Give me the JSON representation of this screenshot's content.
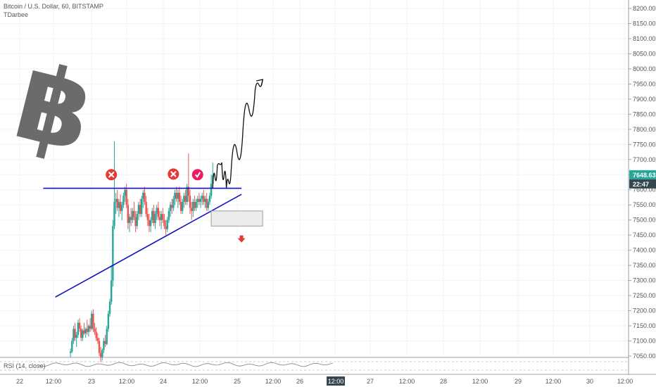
{
  "legend": {
    "symbol_line": "Bitcoin / U.S. Dollar, 60, BITSTAMP",
    "indicator": "TDarbee"
  },
  "rsi_label": "RSI (14, close)",
  "price_scale": {
    "ticks": [
      8200,
      8150,
      8100,
      8050,
      8000,
      7950,
      7900,
      7850,
      7800,
      7750,
      7700,
      7650,
      7600,
      7550,
      7500,
      7450,
      7400,
      7350,
      7300,
      7250,
      7200,
      7150,
      7100,
      7050
    ],
    "tick_labels": [
      "8200.00",
      "8150.00",
      "8100.00",
      "8050.00",
      "8000.00",
      "7950.00",
      "7900.00",
      "7850.00",
      "7800.00",
      "7750.00",
      "7700.00",
      "7650.00",
      "7600.00",
      "7550.00",
      "7500.00",
      "7450.00",
      "7400.00",
      "7350.00",
      "7300.00",
      "7250.00",
      "7200.00",
      "7150.00",
      "7100.00",
      "7050.00"
    ],
    "current_price": "7648.63",
    "countdown": "22:47",
    "current_price_value": 7648.63,
    "tag_color": "#26a69a",
    "countdown_color": "#37474f"
  },
  "time_scale": {
    "labels": [
      "22",
      "12:00",
      "23",
      "12:00",
      "24",
      "12:00",
      "25",
      "12:00",
      "26",
      "12:00",
      "27",
      "12:00",
      "28",
      "12:00",
      "29",
      "12:00",
      "30",
      "12:00"
    ],
    "active_label": "12:00"
  },
  "chart_data": {
    "type": "candlestick",
    "title": "Bitcoin / U.S. Dollar, 60, BITSTAMP",
    "ylim": [
      7040,
      8220
    ],
    "x_unit": "hours since start of Sep 21 (start of the visible range)",
    "up_color": "#26a69a",
    "down_color": "#ef5350",
    "candles": [
      {
        "t": 31,
        "o": 7060,
        "h": 7075,
        "l": 7045,
        "c": 7065
      },
      {
        "t": 32,
        "o": 7065,
        "h": 7110,
        "l": 7060,
        "c": 7100
      },
      {
        "t": 33,
        "o": 7100,
        "h": 7150,
        "l": 7090,
        "c": 7140
      },
      {
        "t": 34,
        "o": 7140,
        "h": 7160,
        "l": 7100,
        "c": 7110
      },
      {
        "t": 35,
        "o": 7110,
        "h": 7130,
        "l": 7080,
        "c": 7120
      },
      {
        "t": 36,
        "o": 7120,
        "h": 7170,
        "l": 7110,
        "c": 7160
      },
      {
        "t": 37,
        "o": 7160,
        "h": 7175,
        "l": 7130,
        "c": 7140
      },
      {
        "t": 38,
        "o": 7140,
        "h": 7150,
        "l": 7100,
        "c": 7110
      },
      {
        "t": 39,
        "o": 7110,
        "h": 7140,
        "l": 7100,
        "c": 7135
      },
      {
        "t": 40,
        "o": 7135,
        "h": 7160,
        "l": 7120,
        "c": 7125
      },
      {
        "t": 41,
        "o": 7125,
        "h": 7145,
        "l": 7110,
        "c": 7140
      },
      {
        "t": 42,
        "o": 7140,
        "h": 7170,
        "l": 7120,
        "c": 7130
      },
      {
        "t": 43,
        "o": 7130,
        "h": 7155,
        "l": 7115,
        "c": 7150
      },
      {
        "t": 44,
        "o": 7150,
        "h": 7175,
        "l": 7130,
        "c": 7140
      },
      {
        "t": 45,
        "o": 7140,
        "h": 7200,
        "l": 7135,
        "c": 7190
      },
      {
        "t": 46,
        "o": 7190,
        "h": 7205,
        "l": 7130,
        "c": 7140
      },
      {
        "t": 47,
        "o": 7140,
        "h": 7160,
        "l": 7120,
        "c": 7130
      },
      {
        "t": 48,
        "o": 7130,
        "h": 7145,
        "l": 7100,
        "c": 7110
      },
      {
        "t": 49,
        "o": 7110,
        "h": 7125,
        "l": 7090,
        "c": 7100
      },
      {
        "t": 50,
        "o": 7100,
        "h": 7110,
        "l": 7050,
        "c": 7060
      },
      {
        "t": 51,
        "o": 7060,
        "h": 7080,
        "l": 7030,
        "c": 7045
      },
      {
        "t": 52,
        "o": 7045,
        "h": 7075,
        "l": 7035,
        "c": 7070
      },
      {
        "t": 53,
        "o": 7070,
        "h": 7110,
        "l": 7060,
        "c": 7100
      },
      {
        "t": 54,
        "o": 7100,
        "h": 7120,
        "l": 7080,
        "c": 7090
      },
      {
        "t": 55,
        "o": 7090,
        "h": 7150,
        "l": 7085,
        "c": 7140
      },
      {
        "t": 56,
        "o": 7140,
        "h": 7200,
        "l": 7130,
        "c": 7190
      },
      {
        "t": 57,
        "o": 7190,
        "h": 7240,
        "l": 7180,
        "c": 7230
      },
      {
        "t": 58,
        "o": 7230,
        "h": 7350,
        "l": 7220,
        "c": 7300
      },
      {
        "t": 59,
        "o": 7300,
        "h": 7500,
        "l": 7280,
        "c": 7480
      },
      {
        "t": 60,
        "o": 7480,
        "h": 7760,
        "l": 7470,
        "c": 7560
      },
      {
        "t": 61,
        "o": 7560,
        "h": 7590,
        "l": 7520,
        "c": 7570
      },
      {
        "t": 62,
        "o": 7570,
        "h": 7600,
        "l": 7530,
        "c": 7540
      },
      {
        "t": 63,
        "o": 7540,
        "h": 7570,
        "l": 7510,
        "c": 7560
      },
      {
        "t": 64,
        "o": 7560,
        "h": 7585,
        "l": 7520,
        "c": 7530
      },
      {
        "t": 65,
        "o": 7530,
        "h": 7560,
        "l": 7500,
        "c": 7550
      },
      {
        "t": 66,
        "o": 7550,
        "h": 7590,
        "l": 7540,
        "c": 7580
      },
      {
        "t": 67,
        "o": 7580,
        "h": 7610,
        "l": 7560,
        "c": 7600
      },
      {
        "t": 68,
        "o": 7600,
        "h": 7620,
        "l": 7540,
        "c": 7550
      },
      {
        "t": 69,
        "o": 7550,
        "h": 7570,
        "l": 7470,
        "c": 7490
      },
      {
        "t": 70,
        "o": 7490,
        "h": 7520,
        "l": 7460,
        "c": 7510
      },
      {
        "t": 71,
        "o": 7510,
        "h": 7540,
        "l": 7480,
        "c": 7500
      },
      {
        "t": 72,
        "o": 7500,
        "h": 7540,
        "l": 7490,
        "c": 7530
      },
      {
        "t": 73,
        "o": 7530,
        "h": 7560,
        "l": 7500,
        "c": 7510
      },
      {
        "t": 74,
        "o": 7510,
        "h": 7530,
        "l": 7460,
        "c": 7480
      },
      {
        "t": 75,
        "o": 7480,
        "h": 7530,
        "l": 7470,
        "c": 7520
      },
      {
        "t": 76,
        "o": 7520,
        "h": 7560,
        "l": 7500,
        "c": 7550
      },
      {
        "t": 77,
        "o": 7550,
        "h": 7570,
        "l": 7510,
        "c": 7520
      },
      {
        "t": 78,
        "o": 7520,
        "h": 7580,
        "l": 7510,
        "c": 7570
      },
      {
        "t": 79,
        "o": 7570,
        "h": 7600,
        "l": 7540,
        "c": 7590
      },
      {
        "t": 80,
        "o": 7590,
        "h": 7610,
        "l": 7550,
        "c": 7560
      },
      {
        "t": 81,
        "o": 7560,
        "h": 7580,
        "l": 7510,
        "c": 7520
      },
      {
        "t": 82,
        "o": 7520,
        "h": 7540,
        "l": 7480,
        "c": 7500
      },
      {
        "t": 83,
        "o": 7500,
        "h": 7520,
        "l": 7460,
        "c": 7480
      },
      {
        "t": 84,
        "o": 7480,
        "h": 7510,
        "l": 7460,
        "c": 7500
      },
      {
        "t": 85,
        "o": 7500,
        "h": 7540,
        "l": 7490,
        "c": 7530
      },
      {
        "t": 86,
        "o": 7530,
        "h": 7550,
        "l": 7480,
        "c": 7490
      },
      {
        "t": 87,
        "o": 7490,
        "h": 7530,
        "l": 7470,
        "c": 7520
      },
      {
        "t": 88,
        "o": 7520,
        "h": 7550,
        "l": 7500,
        "c": 7540
      },
      {
        "t": 89,
        "o": 7540,
        "h": 7560,
        "l": 7500,
        "c": 7510
      },
      {
        "t": 90,
        "o": 7510,
        "h": 7530,
        "l": 7480,
        "c": 7500
      },
      {
        "t": 91,
        "o": 7500,
        "h": 7530,
        "l": 7470,
        "c": 7520
      },
      {
        "t": 92,
        "o": 7520,
        "h": 7540,
        "l": 7490,
        "c": 7500
      },
      {
        "t": 93,
        "o": 7500,
        "h": 7520,
        "l": 7470,
        "c": 7480
      },
      {
        "t": 94,
        "o": 7480,
        "h": 7500,
        "l": 7450,
        "c": 7470
      },
      {
        "t": 95,
        "o": 7470,
        "h": 7510,
        "l": 7460,
        "c": 7500
      },
      {
        "t": 96,
        "o": 7500,
        "h": 7540,
        "l": 7490,
        "c": 7530
      },
      {
        "t": 97,
        "o": 7530,
        "h": 7560,
        "l": 7510,
        "c": 7550
      },
      {
        "t": 98,
        "o": 7550,
        "h": 7570,
        "l": 7520,
        "c": 7540
      },
      {
        "t": 99,
        "o": 7540,
        "h": 7580,
        "l": 7530,
        "c": 7570
      },
      {
        "t": 100,
        "o": 7570,
        "h": 7600,
        "l": 7550,
        "c": 7590
      },
      {
        "t": 101,
        "o": 7590,
        "h": 7610,
        "l": 7560,
        "c": 7570
      },
      {
        "t": 102,
        "o": 7570,
        "h": 7600,
        "l": 7540,
        "c": 7590
      },
      {
        "t": 103,
        "o": 7590,
        "h": 7610,
        "l": 7550,
        "c": 7560
      },
      {
        "t": 104,
        "o": 7560,
        "h": 7580,
        "l": 7520,
        "c": 7530
      },
      {
        "t": 105,
        "o": 7530,
        "h": 7570,
        "l": 7520,
        "c": 7560
      },
      {
        "t": 106,
        "o": 7560,
        "h": 7590,
        "l": 7540,
        "c": 7580
      },
      {
        "t": 107,
        "o": 7580,
        "h": 7600,
        "l": 7550,
        "c": 7560
      },
      {
        "t": 108,
        "o": 7560,
        "h": 7620,
        "l": 7550,
        "c": 7610
      },
      {
        "t": 109,
        "o": 7610,
        "h": 7720,
        "l": 7560,
        "c": 7580
      },
      {
        "t": 110,
        "o": 7580,
        "h": 7600,
        "l": 7520,
        "c": 7540
      },
      {
        "t": 111,
        "o": 7540,
        "h": 7560,
        "l": 7500,
        "c": 7530
      },
      {
        "t": 112,
        "o": 7530,
        "h": 7570,
        "l": 7510,
        "c": 7560
      },
      {
        "t": 113,
        "o": 7560,
        "h": 7580,
        "l": 7530,
        "c": 7540
      },
      {
        "t": 114,
        "o": 7540,
        "h": 7570,
        "l": 7530,
        "c": 7560
      },
      {
        "t": 115,
        "o": 7560,
        "h": 7580,
        "l": 7540,
        "c": 7570
      },
      {
        "t": 116,
        "o": 7570,
        "h": 7590,
        "l": 7550,
        "c": 7560
      },
      {
        "t": 117,
        "o": 7560,
        "h": 7580,
        "l": 7540,
        "c": 7570
      },
      {
        "t": 118,
        "o": 7570,
        "h": 7590,
        "l": 7550,
        "c": 7580
      },
      {
        "t": 119,
        "o": 7580,
        "h": 7600,
        "l": 7550,
        "c": 7560
      },
      {
        "t": 120,
        "o": 7560,
        "h": 7580,
        "l": 7540,
        "c": 7570
      },
      {
        "t": 121,
        "o": 7570,
        "h": 7590,
        "l": 7530,
        "c": 7540
      },
      {
        "t": 122,
        "o": 7540,
        "h": 7570,
        "l": 7530,
        "c": 7560
      },
      {
        "t": 123,
        "o": 7560,
        "h": 7590,
        "l": 7550,
        "c": 7580
      },
      {
        "t": 124,
        "o": 7580,
        "h": 7650,
        "l": 7570,
        "c": 7620
      },
      {
        "t": 125,
        "o": 7620,
        "h": 7690,
        "l": 7610,
        "c": 7648
      }
    ],
    "annotations": {
      "horizontal_line": {
        "price": 7605,
        "t_start": 13,
        "t_end": 144,
        "color": "#1010c0"
      },
      "ascending_trendline": {
        "t1": 21,
        "p1": 7245,
        "t2": 144,
        "p2": 7585,
        "color": "#1010c0"
      },
      "rectangle": {
        "t1": 124,
        "t2": 158,
        "p_top": 7530,
        "p_bottom": 7480
      },
      "down_arrow": {
        "t": 144,
        "p": 7435,
        "color": "#e53935"
      },
      "projection_path": [
        [
          125,
          7605
        ],
        [
          128,
          7680
        ],
        [
          131,
          7690
        ],
        [
          134,
          7605
        ],
        [
          137,
          7650
        ],
        [
          145,
          7800
        ],
        [
          153,
          7930
        ],
        [
          158,
          7965
        ]
      ],
      "markers": [
        {
          "t": 58,
          "p": 7650,
          "kind": "cross",
          "color": "#e53935"
        },
        {
          "t": 99,
          "p": 7652,
          "kind": "cross",
          "color": "#e53935"
        },
        {
          "t": 115,
          "p": 7650,
          "kind": "check",
          "color": "#e91e63"
        }
      ],
      "logo": "bitcoin"
    }
  }
}
